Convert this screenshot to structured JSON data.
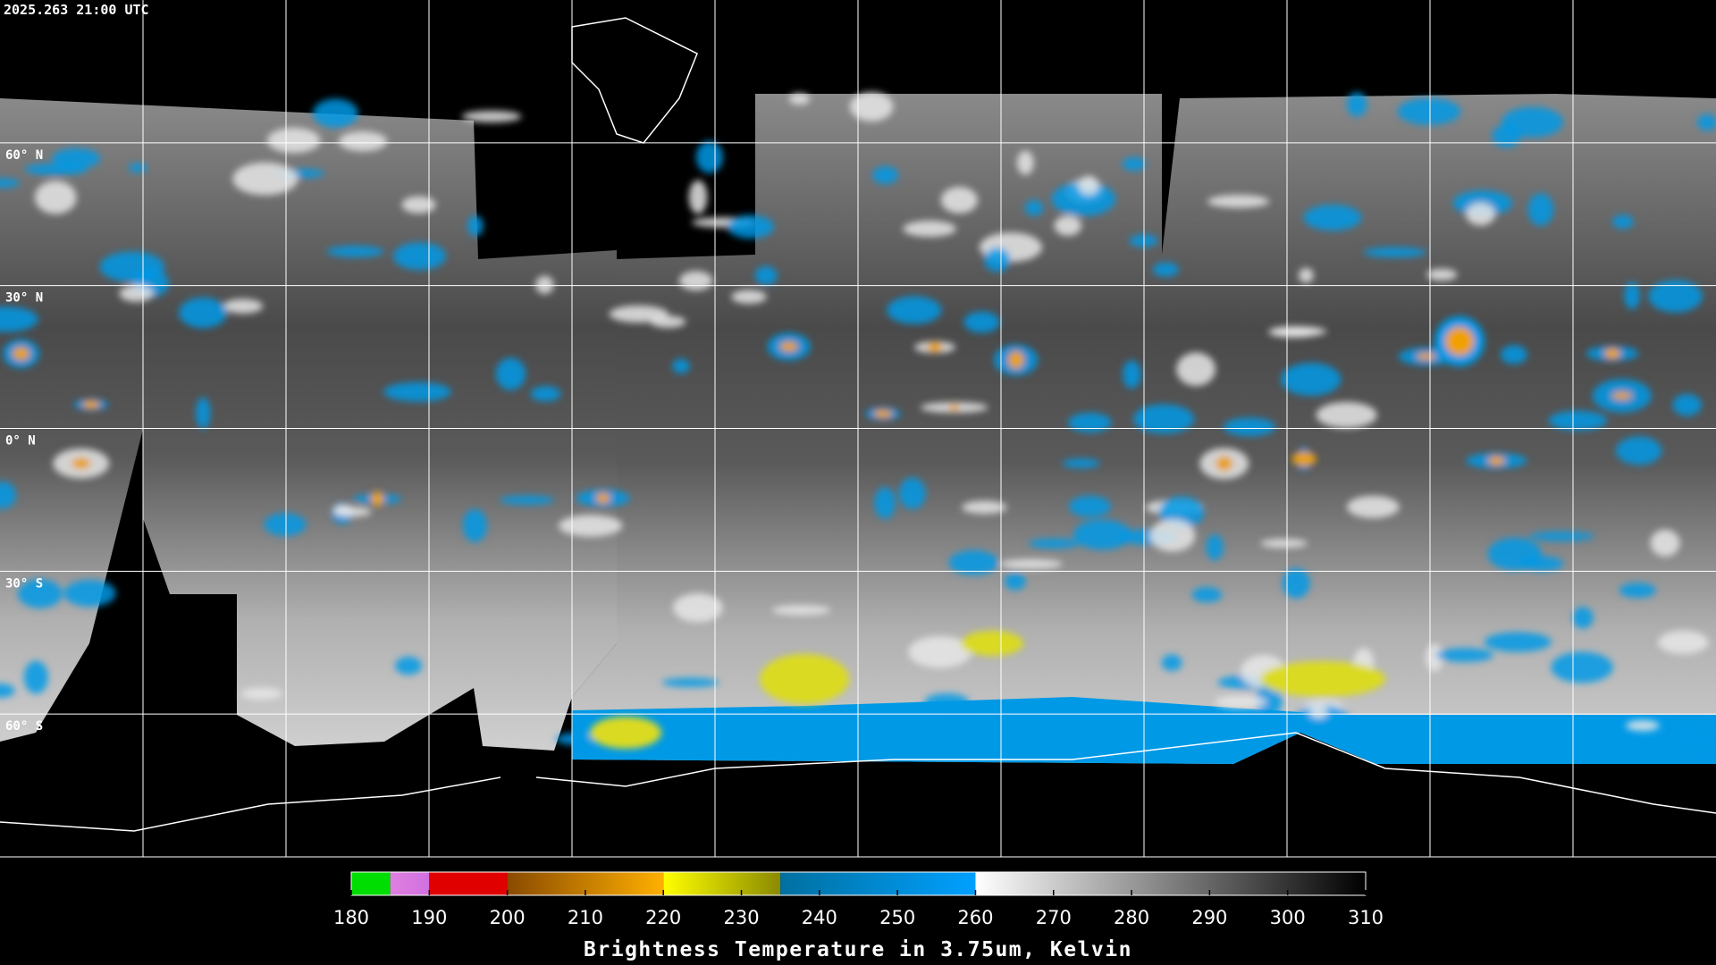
{
  "header": {
    "timestamp": "2025.263 21:00 UTC"
  },
  "map": {
    "lat_labels": [
      "60° N",
      "30° N",
      "0° N",
      "30° S",
      "60° S"
    ]
  },
  "colorbar": {
    "label": "Brightness Temperature in 3.75um, Kelvin",
    "range": [
      180,
      310
    ],
    "ticks": [
      180,
      190,
      200,
      210,
      220,
      230,
      240,
      250,
      260,
      270,
      280,
      290,
      300,
      310
    ],
    "segments": [
      {
        "from": 180,
        "to": 185,
        "colors": [
          "#00dd00",
          "#00dd00"
        ]
      },
      {
        "from": 185,
        "to": 190,
        "colors": [
          "#e080e0",
          "#d070e0"
        ]
      },
      {
        "from": 190,
        "to": 200,
        "colors": [
          "#e00000",
          "#e00000"
        ]
      },
      {
        "from": 200,
        "to": 220,
        "colors": [
          "#8a4a00",
          "#ffb000"
        ]
      },
      {
        "from": 220,
        "to": 235,
        "colors": [
          "#ffff00",
          "#8a8a00"
        ]
      },
      {
        "from": 235,
        "to": 260,
        "colors": [
          "#0070a0",
          "#00a0ff"
        ]
      },
      {
        "from": 260,
        "to": 310,
        "colors": [
          "#ffffff",
          "#000000"
        ]
      }
    ]
  }
}
